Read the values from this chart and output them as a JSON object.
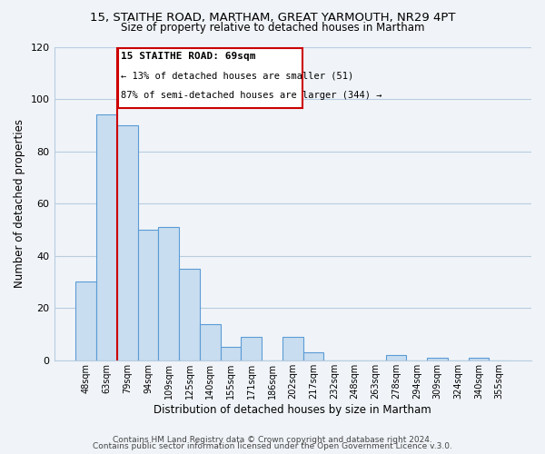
{
  "title": "15, STAITHE ROAD, MARTHAM, GREAT YARMOUTH, NR29 4PT",
  "subtitle": "Size of property relative to detached houses in Martham",
  "xlabel": "Distribution of detached houses by size in Martham",
  "ylabel": "Number of detached properties",
  "bar_labels": [
    "48sqm",
    "63sqm",
    "79sqm",
    "94sqm",
    "109sqm",
    "125sqm",
    "140sqm",
    "155sqm",
    "171sqm",
    "186sqm",
    "202sqm",
    "217sqm",
    "232sqm",
    "248sqm",
    "263sqm",
    "278sqm",
    "294sqm",
    "309sqm",
    "324sqm",
    "340sqm",
    "355sqm"
  ],
  "bar_values": [
    30,
    94,
    90,
    50,
    51,
    35,
    14,
    5,
    9,
    0,
    9,
    3,
    0,
    0,
    0,
    2,
    0,
    1,
    0,
    1,
    0
  ],
  "bar_color": "#c9ddf0",
  "bar_edge_color": "#5b9bd5",
  "annotation_title": "15 STAITHE ROAD: 69sqm",
  "annotation_line1": "← 13% of detached houses are smaller (51)",
  "annotation_line2": "87% of semi-detached houses are larger (344) →",
  "annotation_box_color": "#ffffff",
  "annotation_box_edge": "#cc0000",
  "property_line_color": "#cc0000",
  "ylim": [
    0,
    120
  ],
  "yticks": [
    0,
    20,
    40,
    60,
    80,
    100,
    120
  ],
  "footer1": "Contains HM Land Registry data © Crown copyright and database right 2024.",
  "footer2": "Contains public sector information licensed under the Open Government Licence v.3.0.",
  "background_color": "#f0f4f8",
  "grid_color": "#b8cde0"
}
